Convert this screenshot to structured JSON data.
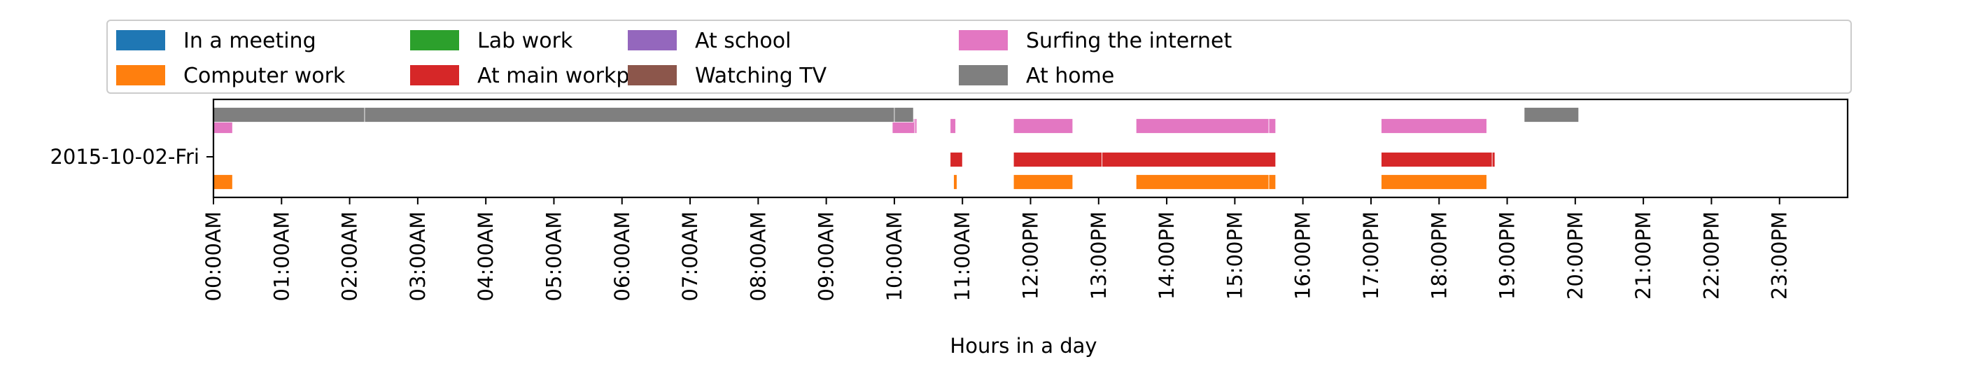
{
  "chart_data": {
    "type": "bar",
    "orientation": "horizontal-timeline",
    "xlabel": "Hours in a day",
    "ylabel": "",
    "xlim": [
      0,
      24
    ],
    "grid": false,
    "legend_placement": "top",
    "x_ticks": [
      {
        "value": 0,
        "label": "00:00AM"
      },
      {
        "value": 1,
        "label": "01:00AM"
      },
      {
        "value": 2,
        "label": "02:00AM"
      },
      {
        "value": 3,
        "label": "03:00AM"
      },
      {
        "value": 4,
        "label": "04:00AM"
      },
      {
        "value": 5,
        "label": "05:00AM"
      },
      {
        "value": 6,
        "label": "06:00AM"
      },
      {
        "value": 7,
        "label": "07:00AM"
      },
      {
        "value": 8,
        "label": "08:00AM"
      },
      {
        "value": 9,
        "label": "09:00AM"
      },
      {
        "value": 10,
        "label": "10:00AM"
      },
      {
        "value": 11,
        "label": "11:00AM"
      },
      {
        "value": 12,
        "label": "12:00PM"
      },
      {
        "value": 13,
        "label": "13:00PM"
      },
      {
        "value": 14,
        "label": "14:00PM"
      },
      {
        "value": 15,
        "label": "15:00PM"
      },
      {
        "value": 16,
        "label": "16:00PM"
      },
      {
        "value": 17,
        "label": "17:00PM"
      },
      {
        "value": 18,
        "label": "18:00PM"
      },
      {
        "value": 19,
        "label": "19:00PM"
      },
      {
        "value": 20,
        "label": "20:00PM"
      },
      {
        "value": 21,
        "label": "21:00PM"
      },
      {
        "value": 22,
        "label": "22:00PM"
      },
      {
        "value": 23,
        "label": "23:00PM"
      }
    ],
    "categories": [
      "2015-10-02-Fri"
    ],
    "series": [
      {
        "name": "In a meeting",
        "color": "#1f77b4",
        "intervals": []
      },
      {
        "name": "Computer work",
        "color": "#ff7f0e",
        "intervals": [
          [
            0,
            0.28
          ],
          [
            10.87,
            10.92
          ],
          [
            11.75,
            12.62
          ],
          [
            13.55,
            15.5
          ],
          [
            15.5,
            15.6
          ],
          [
            17.15,
            18.7
          ]
        ]
      },
      {
        "name": "Lab work",
        "color": "#2ca02c",
        "intervals": []
      },
      {
        "name": "At main workplace",
        "color": "#d62728",
        "intervals": [
          [
            10.82,
            11.0
          ],
          [
            11.75,
            13.05
          ],
          [
            13.05,
            15.6
          ],
          [
            17.15,
            18.78
          ],
          [
            18.78,
            18.82
          ]
        ]
      },
      {
        "name": "At school",
        "color": "#9467bd",
        "intervals": []
      },
      {
        "name": "Watching TV",
        "color": "#8c564b",
        "intervals": []
      },
      {
        "name": "Surfing the internet",
        "color": "#e377c2",
        "intervals": [
          [
            0,
            0.28
          ],
          [
            9.97,
            10.3
          ],
          [
            10.3,
            10.33
          ],
          [
            10.82,
            10.9
          ],
          [
            11.75,
            12.62
          ],
          [
            13.55,
            15.5
          ],
          [
            15.5,
            15.6
          ],
          [
            17.15,
            18.7
          ]
        ]
      },
      {
        "name": "At home",
        "color": "#7f7f7f",
        "intervals": [
          [
            0,
            2.22
          ],
          [
            2.22,
            10.0
          ],
          [
            10.0,
            10.28
          ],
          [
            19.25,
            20.05
          ]
        ]
      }
    ]
  }
}
